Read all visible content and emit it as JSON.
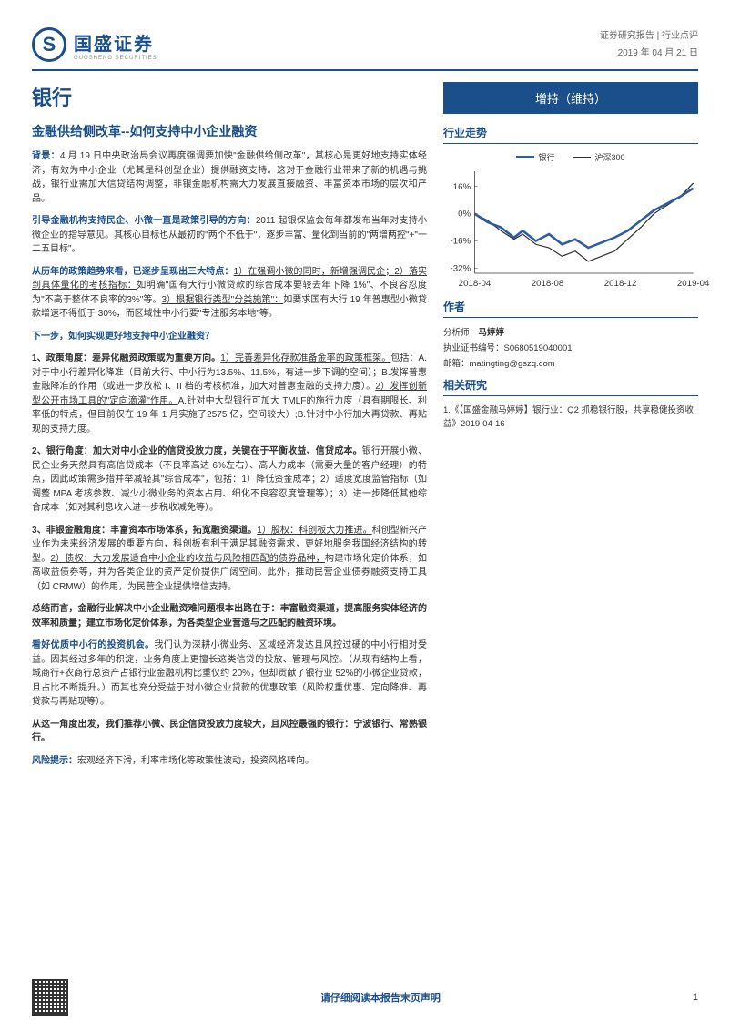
{
  "header": {
    "company_cn": "国盛证券",
    "company_en": "GUOSHENG SECURITIES",
    "logo_letter": "S",
    "report_type": "证券研究报告 | 行业点评",
    "date": "2019 年 04 月 21 日"
  },
  "title": {
    "industry": "银行",
    "subtitle": "金融供给侧改革--如何支持中小企业融资"
  },
  "body": {
    "p1_lead": "背景：",
    "p1": "4 月 19 日中央政治局会议再度强调要加快\"金融供给侧改革\"，其核心是更好地支持实体经济，有效为中小企业（尤其是科创型企业）提供融资支持。这对于金融行业带来了新的机遇与挑战，银行业需加大信贷结构调整，非银金融机构需大力发展直接融资、丰富资本市场的层次和产品。",
    "p2_lead": "引导金融机构支持民企、小微一直是政策引导的方向：",
    "p2": "2011 起银保监会每年都发布当年对支持小微企业的指导意见。其核心目标也从最初的\"两个不低于\"，逐步丰富、量化到当前的\"两增两控\"+\"一二五目标\"。",
    "p3_lead": "从历年的政策趋势来看，已逐步呈现出三大特点：",
    "p3_u1": "1）在强调小微的同时，新增强调民企；",
    "p3_u2": "2）落实到具体量化的考核指标：",
    "p3_mid": "如明确\"国有大行小微贷款的综合成本要较去年下降 1%\"、不良容忍度为\"不高于整体不良率的3%\"等。",
    "p3_u3": "3）根据银行类型\"分类施策\"：",
    "p3_end": "如要求国有大行 19 年普惠型小微贷款增速不得低于 30%，而区域性中小行要\"专注服务本地\"等。",
    "q_title": "下一步，如何实现更好地支持中小企业融资？",
    "s1_lead": "1、政策角度：差异化融资政策或为重要方向。",
    "s1_u1": "1）完善差异化存款准备金率的政策框架。",
    "s1_a": "包括：A.对于中小行差异化降准（目前大行、中小行为13.5%、11.5%，有进一步下调的空间）；B.发挥普惠金融降准的作用（或进一步放松 I、II 档的考核标准，加大对普惠金融的支持力度）。",
    "s1_u2": "2）发挥创新型公开市场工具的\"定向滴灌\"作用。",
    "s1_b": "A.针对中大型银行可加大 TMLF的施行力度（具有期限长、利率低的特点，但目前仅在 19 年 1 月实施了2575 亿，空间较大）;B.针对中小行加大再贷款、再贴现的支持力度。",
    "s2_lead": "2、银行角度：加大对中小企业的信贷投放力度，关键在于平衡收益、信贷成本。",
    "s2": "银行开展小微、民企业务天然具有高信贷成本（不良率高达 6%左右）、高人力成本（需要大量的客户经理）的特点，因此政策需多措并举减轻其\"综合成本\"，包括：1）降低资金成本；2）适度宽度监管指标（如调整 MPA 考核参数、减少小微业务的资本占用、细化不良容忍度管理等）；3）进一步降低其他综合成本（如对其利息收入进一步税收减免等）。",
    "s3_lead": "3、非银金融角度：丰富资本市场体系，拓宽融资渠道。",
    "s3_u1": "1）股权：科创板大力推进。",
    "s3_a": "科创型新兴产业作为未来经济发展的重要方向，科创板有利于满足其融资需求，更好地服务我国经济结构的转型。",
    "s3_u2": "2）债权：大力发展适合中小企业的收益与风险相匹配的债券品种，",
    "s3_b": "构建市场化定价体系，如高收益债券等，并为各类企业的资产定价提供广阔空间。此外，推动民营企业债券融资支持工具（如 CRMW）的作用，为民营企业提供增信支持。",
    "summary": "总结而言，金融行业解决中小企业融资难问题根本出路在于：丰富融资渠道，提高服务实体经济的效率和质量；建立市场化定价体系，为各类型企业营造与之匹配的融资环境。",
    "opp_lead": "看好优质中小行的投资机会。",
    "opp": "我们认为深耕小微业务、区域经济发达且风控过硬的中小行相对受益。因其经过多年的积淀，业务角度上更擅长这类信贷的投放、管理与风控。（从现有结构上看，城商行+农商行总资产占银行业金融机构比重仅约 20%，但却贡献了银行业 52%的小微企业贷款，且占比不断提升。）而其也充分受益于对小微企业贷款的优惠政策（风险权重优惠、定向降准、再贷款与再贴现等）。",
    "rec": "从这一角度出发，我们推荐小微、民企信贷投放力度较大，且风控最强的银行：宁波银行、常熟银行。",
    "risk_lead": "风险提示：",
    "risk": "宏观经济下滑，利率市场化等政策性波动，投资风格转向。"
  },
  "right": {
    "rating": "增持（维持）",
    "trend_title": "行业走势",
    "author_title": "作者",
    "analyst_label": "分析师",
    "analyst_name": "马婷婷",
    "cert_label": "执业证书编号：",
    "cert": "S0680519040001",
    "email_label": "邮箱：",
    "email": "matingting@gszq.com",
    "related_title": "相关研究",
    "related_1": "1.《【国盛金融马婷婷】银行业：Q2 抓稳银行股，共享稳健投资收益》2019-04-16"
  },
  "chart": {
    "type": "line",
    "series": [
      {
        "name": "银行",
        "color": "#2c5ca4",
        "width": 2.5
      },
      {
        "name": "沪深300",
        "color": "#333333",
        "width": 1.2
      }
    ],
    "x_labels": [
      "2018-04",
      "2018-08",
      "2018-12",
      "2019-04"
    ],
    "y_ticks": [
      -32,
      -16,
      0,
      16
    ],
    "ylim": [
      -35,
      25
    ],
    "background_color": "#ffffff",
    "grid": false,
    "label_fontsize": 9,
    "bank_data": [
      {
        "x": 0,
        "y": 0
      },
      {
        "x": 6,
        "y": -5
      },
      {
        "x": 12,
        "y": -8
      },
      {
        "x": 18,
        "y": -14
      },
      {
        "x": 22,
        "y": -10
      },
      {
        "x": 28,
        "y": -16
      },
      {
        "x": 34,
        "y": -12
      },
      {
        "x": 40,
        "y": -18
      },
      {
        "x": 46,
        "y": -15
      },
      {
        "x": 52,
        "y": -20
      },
      {
        "x": 58,
        "y": -17
      },
      {
        "x": 64,
        "y": -14
      },
      {
        "x": 70,
        "y": -10
      },
      {
        "x": 76,
        "y": -4
      },
      {
        "x": 82,
        "y": 2
      },
      {
        "x": 88,
        "y": 6
      },
      {
        "x": 94,
        "y": 10
      },
      {
        "x": 100,
        "y": 15
      }
    ],
    "hs300_data": [
      {
        "x": 0,
        "y": 0
      },
      {
        "x": 6,
        "y": -4
      },
      {
        "x": 12,
        "y": -10
      },
      {
        "x": 18,
        "y": -15
      },
      {
        "x": 22,
        "y": -12
      },
      {
        "x": 28,
        "y": -18
      },
      {
        "x": 34,
        "y": -20
      },
      {
        "x": 40,
        "y": -25
      },
      {
        "x": 46,
        "y": -22
      },
      {
        "x": 52,
        "y": -28
      },
      {
        "x": 58,
        "y": -25
      },
      {
        "x": 64,
        "y": -22
      },
      {
        "x": 70,
        "y": -15
      },
      {
        "x": 76,
        "y": -8
      },
      {
        "x": 82,
        "y": 0
      },
      {
        "x": 88,
        "y": 5
      },
      {
        "x": 94,
        "y": 10
      },
      {
        "x": 100,
        "y": 18
      }
    ]
  },
  "footer": {
    "disclaimer": "请仔细阅读本报告末页声明",
    "page": "1"
  },
  "colors": {
    "primary": "#1a4f8c",
    "text": "#333333"
  }
}
